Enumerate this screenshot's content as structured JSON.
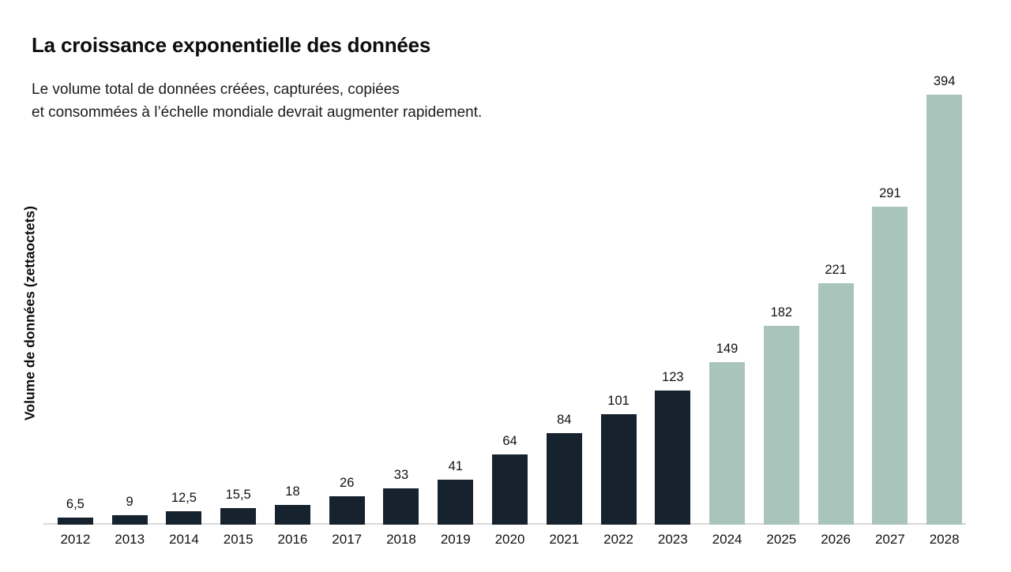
{
  "header": {
    "title": "La croissance exponentielle des données",
    "subtitle_lines": [
      "Le volume total de données créées, capturées, copiées",
      "et consommées à l’échelle mondiale devrait augmenter rapidement."
    ]
  },
  "chart_data": {
    "type": "bar",
    "title": "La croissance exponentielle des données",
    "subtitle": "Le volume total de données créées, capturées, copiées et consommées à l’échelle mondiale devrait augmenter rapidement.",
    "ylabel": "Volume de données (zettaoctets)",
    "xlabel": "",
    "categories": [
      "2012",
      "2013",
      "2014",
      "2015",
      "2016",
      "2017",
      "2018",
      "2019",
      "2020",
      "2021",
      "2022",
      "2023",
      "2024",
      "2025",
      "2026",
      "2027",
      "2028"
    ],
    "values": [
      6.5,
      9,
      12.5,
      15.5,
      18,
      26,
      33,
      41,
      64,
      84,
      101,
      123,
      149,
      182,
      221,
      291,
      394
    ],
    "value_labels": [
      "6,5",
      "9",
      "12,5",
      "15,5",
      "18",
      "26",
      "33",
      "41",
      "64",
      "84",
      "101",
      "123",
      "149",
      "182",
      "221",
      "291",
      "394"
    ],
    "ylim": [
      0,
      400
    ],
    "grid": false,
    "legend": "none",
    "forecast_start_index": 12,
    "colors": {
      "bar_2012_2023": "#16222e",
      "bar_2024_2028": "#a9c4ba",
      "axis_line": "#d9d9d9",
      "text": "#111111"
    }
  }
}
